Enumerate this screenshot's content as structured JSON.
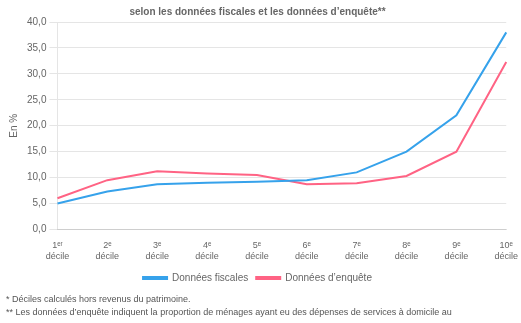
{
  "chart_data": {
    "type": "line",
    "title": "selon les données fiscales et les données d’enquête**",
    "ylabel": "En %",
    "categories": [
      "1ᵉʳ décile",
      "2ᵉ décile",
      "3ᵉ décile",
      "4ᵉ décile",
      "5ᵉ décile",
      "6ᵉ décile",
      "7ᵉ décile",
      "8ᵉ décile",
      "9ᵉ décile",
      "10ᵉ décile"
    ],
    "series": [
      {
        "name": "Données fiscales",
        "values": [
          5.0,
          7.3,
          8.7,
          9.0,
          9.2,
          9.5,
          11.0,
          15.0,
          22.0,
          38.0
        ]
      },
      {
        "name": "Données d’enquête",
        "values": [
          6.0,
          9.5,
          11.2,
          10.8,
          10.5,
          8.7,
          8.9,
          10.3,
          15.0,
          32.3
        ]
      }
    ],
    "ylim": [
      0,
      40
    ],
    "yticks": [
      {
        "value": 0,
        "label": "0,0"
      },
      {
        "value": 5,
        "label": "5,0"
      },
      {
        "value": 10,
        "label": "10,0"
      },
      {
        "value": 15,
        "label": "15,0"
      },
      {
        "value": 20,
        "label": "20,0"
      },
      {
        "value": 25,
        "label": "25,0"
      },
      {
        "value": 30,
        "label": "30,0"
      },
      {
        "value": 35,
        "label": "35,0"
      },
      {
        "value": 40,
        "label": "40,0"
      }
    ],
    "grid": true,
    "legend": "bottom",
    "annotations": [
      "* Déciles calculés hors revenus du patrimoine.",
      "** Les données d’enquête indiquent la proportion de ménages ayant eu des dépenses de services à domicile au"
    ]
  }
}
